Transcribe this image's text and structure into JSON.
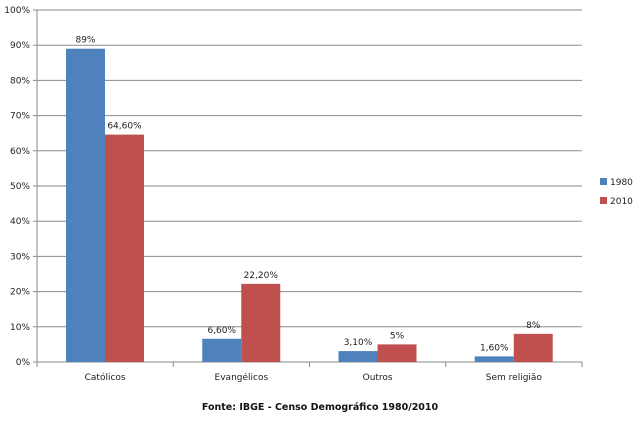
{
  "chart_data": {
    "type": "bar",
    "categories": [
      "Católicos",
      "Evangélicos",
      "Outros",
      "Sem religião"
    ],
    "series": [
      {
        "name": "1980",
        "color": "#4F81BD",
        "values": [
          89,
          6.6,
          3.1,
          1.6
        ],
        "labels": [
          "89%",
          "6,60%",
          "3,10%",
          "1,60%"
        ]
      },
      {
        "name": "2010",
        "color": "#C0504D",
        "values": [
          64.6,
          22.2,
          5,
          8
        ],
        "labels": [
          "64,60%",
          "22,20%",
          "5%",
          "8%"
        ]
      }
    ],
    "ylim": [
      0,
      100
    ],
    "yticks": [
      "0%",
      "10%",
      "20%",
      "30%",
      "40%",
      "50%",
      "60%",
      "70%",
      "80%",
      "90%",
      "100%"
    ],
    "legend_position": "right",
    "grid": true
  },
  "source_note": "Fonte: IBGE - Censo Demográfico 1980/2010"
}
